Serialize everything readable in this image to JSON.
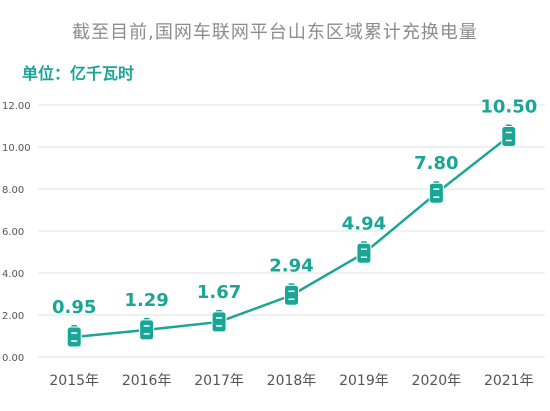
{
  "chart_data": {
    "type": "line",
    "title": "截至目前,国网车联网平台山东区域累计充换电量",
    "unit_label": "单位：亿千瓦时",
    "categories": [
      "2015年",
      "2016年",
      "2017年",
      "2018年",
      "2019年",
      "2020年",
      "2021年"
    ],
    "values": [
      0.95,
      1.29,
      1.67,
      2.94,
      4.94,
      7.8,
      10.5
    ],
    "value_labels": [
      "0.95",
      "1.29",
      "1.67",
      "2.94",
      "4.94",
      "7.80",
      "10.50"
    ],
    "ylim": [
      0,
      12
    ],
    "yticks": [
      "0.00",
      "2.00",
      "4.00",
      "6.00",
      "8.00",
      "10.00",
      "12.00"
    ],
    "grid": true,
    "colors": {
      "line": "#1aa596",
      "label": "#1aa596",
      "marker": "#1aa596",
      "grid": "#e0e0e0"
    },
    "marker_icon": "battery-icon"
  }
}
